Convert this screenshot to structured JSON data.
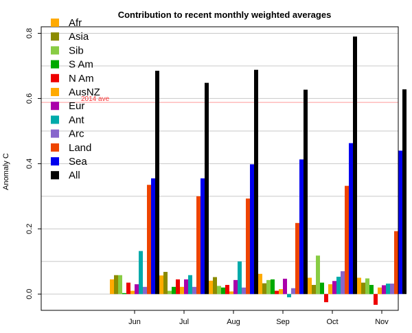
{
  "chart_data": {
    "type": "bar",
    "title": "Contribution to recent monthly weighted averages",
    "xlabel": "",
    "ylabel": "Anomaly C",
    "categories": [
      "Jun",
      "Jul",
      "Aug",
      "Sep",
      "Oct",
      "Nov"
    ],
    "ylim": [
      -0.05,
      0.82
    ],
    "yticks": [
      0.0,
      0.2,
      0.4,
      0.6,
      0.8
    ],
    "ytick_labels": [
      "0.0",
      "0.2",
      "0.4",
      "0.6",
      "0.8"
    ],
    "grid": "horizontal",
    "legend_position": "top-left",
    "reference_line": {
      "label": "2014 ave",
      "value": 0.588,
      "color": "#ff9999",
      "text_color": "#ff3333"
    },
    "series": [
      {
        "name": "Afr",
        "color": "#ffaa00",
        "values": [
          0.045,
          0.057,
          0.041,
          0.062,
          0.05,
          0.05
        ]
      },
      {
        "name": "Asia",
        "color": "#8b8b00",
        "values": [
          0.058,
          0.068,
          0.052,
          0.033,
          0.028,
          0.035
        ]
      },
      {
        "name": "Sib",
        "color": "#88cc44",
        "values": [
          0.058,
          0.01,
          0.025,
          0.043,
          0.118,
          0.048
        ]
      },
      {
        "name": "S Am",
        "color": "#00aa00",
        "values": [
          0.003,
          0.022,
          0.02,
          0.045,
          0.035,
          0.028
        ]
      },
      {
        "name": "N Am",
        "color": "#ee0000",
        "values": [
          0.035,
          0.045,
          0.028,
          0.01,
          -0.025,
          -0.033
        ]
      },
      {
        "name": "AusNZ",
        "color": "#ffaa00",
        "values": [
          0.01,
          0.022,
          0.008,
          0.015,
          0.03,
          0.02
        ]
      },
      {
        "name": "Eur",
        "color": "#aa00aa",
        "values": [
          0.03,
          0.045,
          0.043,
          0.047,
          0.04,
          0.027
        ]
      },
      {
        "name": "Ant",
        "color": "#00aaaa",
        "values": [
          0.132,
          0.058,
          0.1,
          -0.01,
          0.053,
          0.032
        ]
      },
      {
        "name": "Arc",
        "color": "#8866cc",
        "values": [
          0.022,
          0.022,
          0.02,
          0.018,
          0.07,
          0.032
        ]
      },
      {
        "name": "Land",
        "color": "#ee4400",
        "values": [
          0.335,
          0.3,
          0.293,
          0.218,
          0.332,
          0.193
        ]
      },
      {
        "name": "Sea",
        "color": "#0000ee",
        "values": [
          0.355,
          0.355,
          0.398,
          0.413,
          0.463,
          0.44
        ]
      },
      {
        "name": "All",
        "color": "#000000",
        "values": [
          0.685,
          0.648,
          0.688,
          0.627,
          0.79,
          0.628
        ]
      }
    ]
  }
}
